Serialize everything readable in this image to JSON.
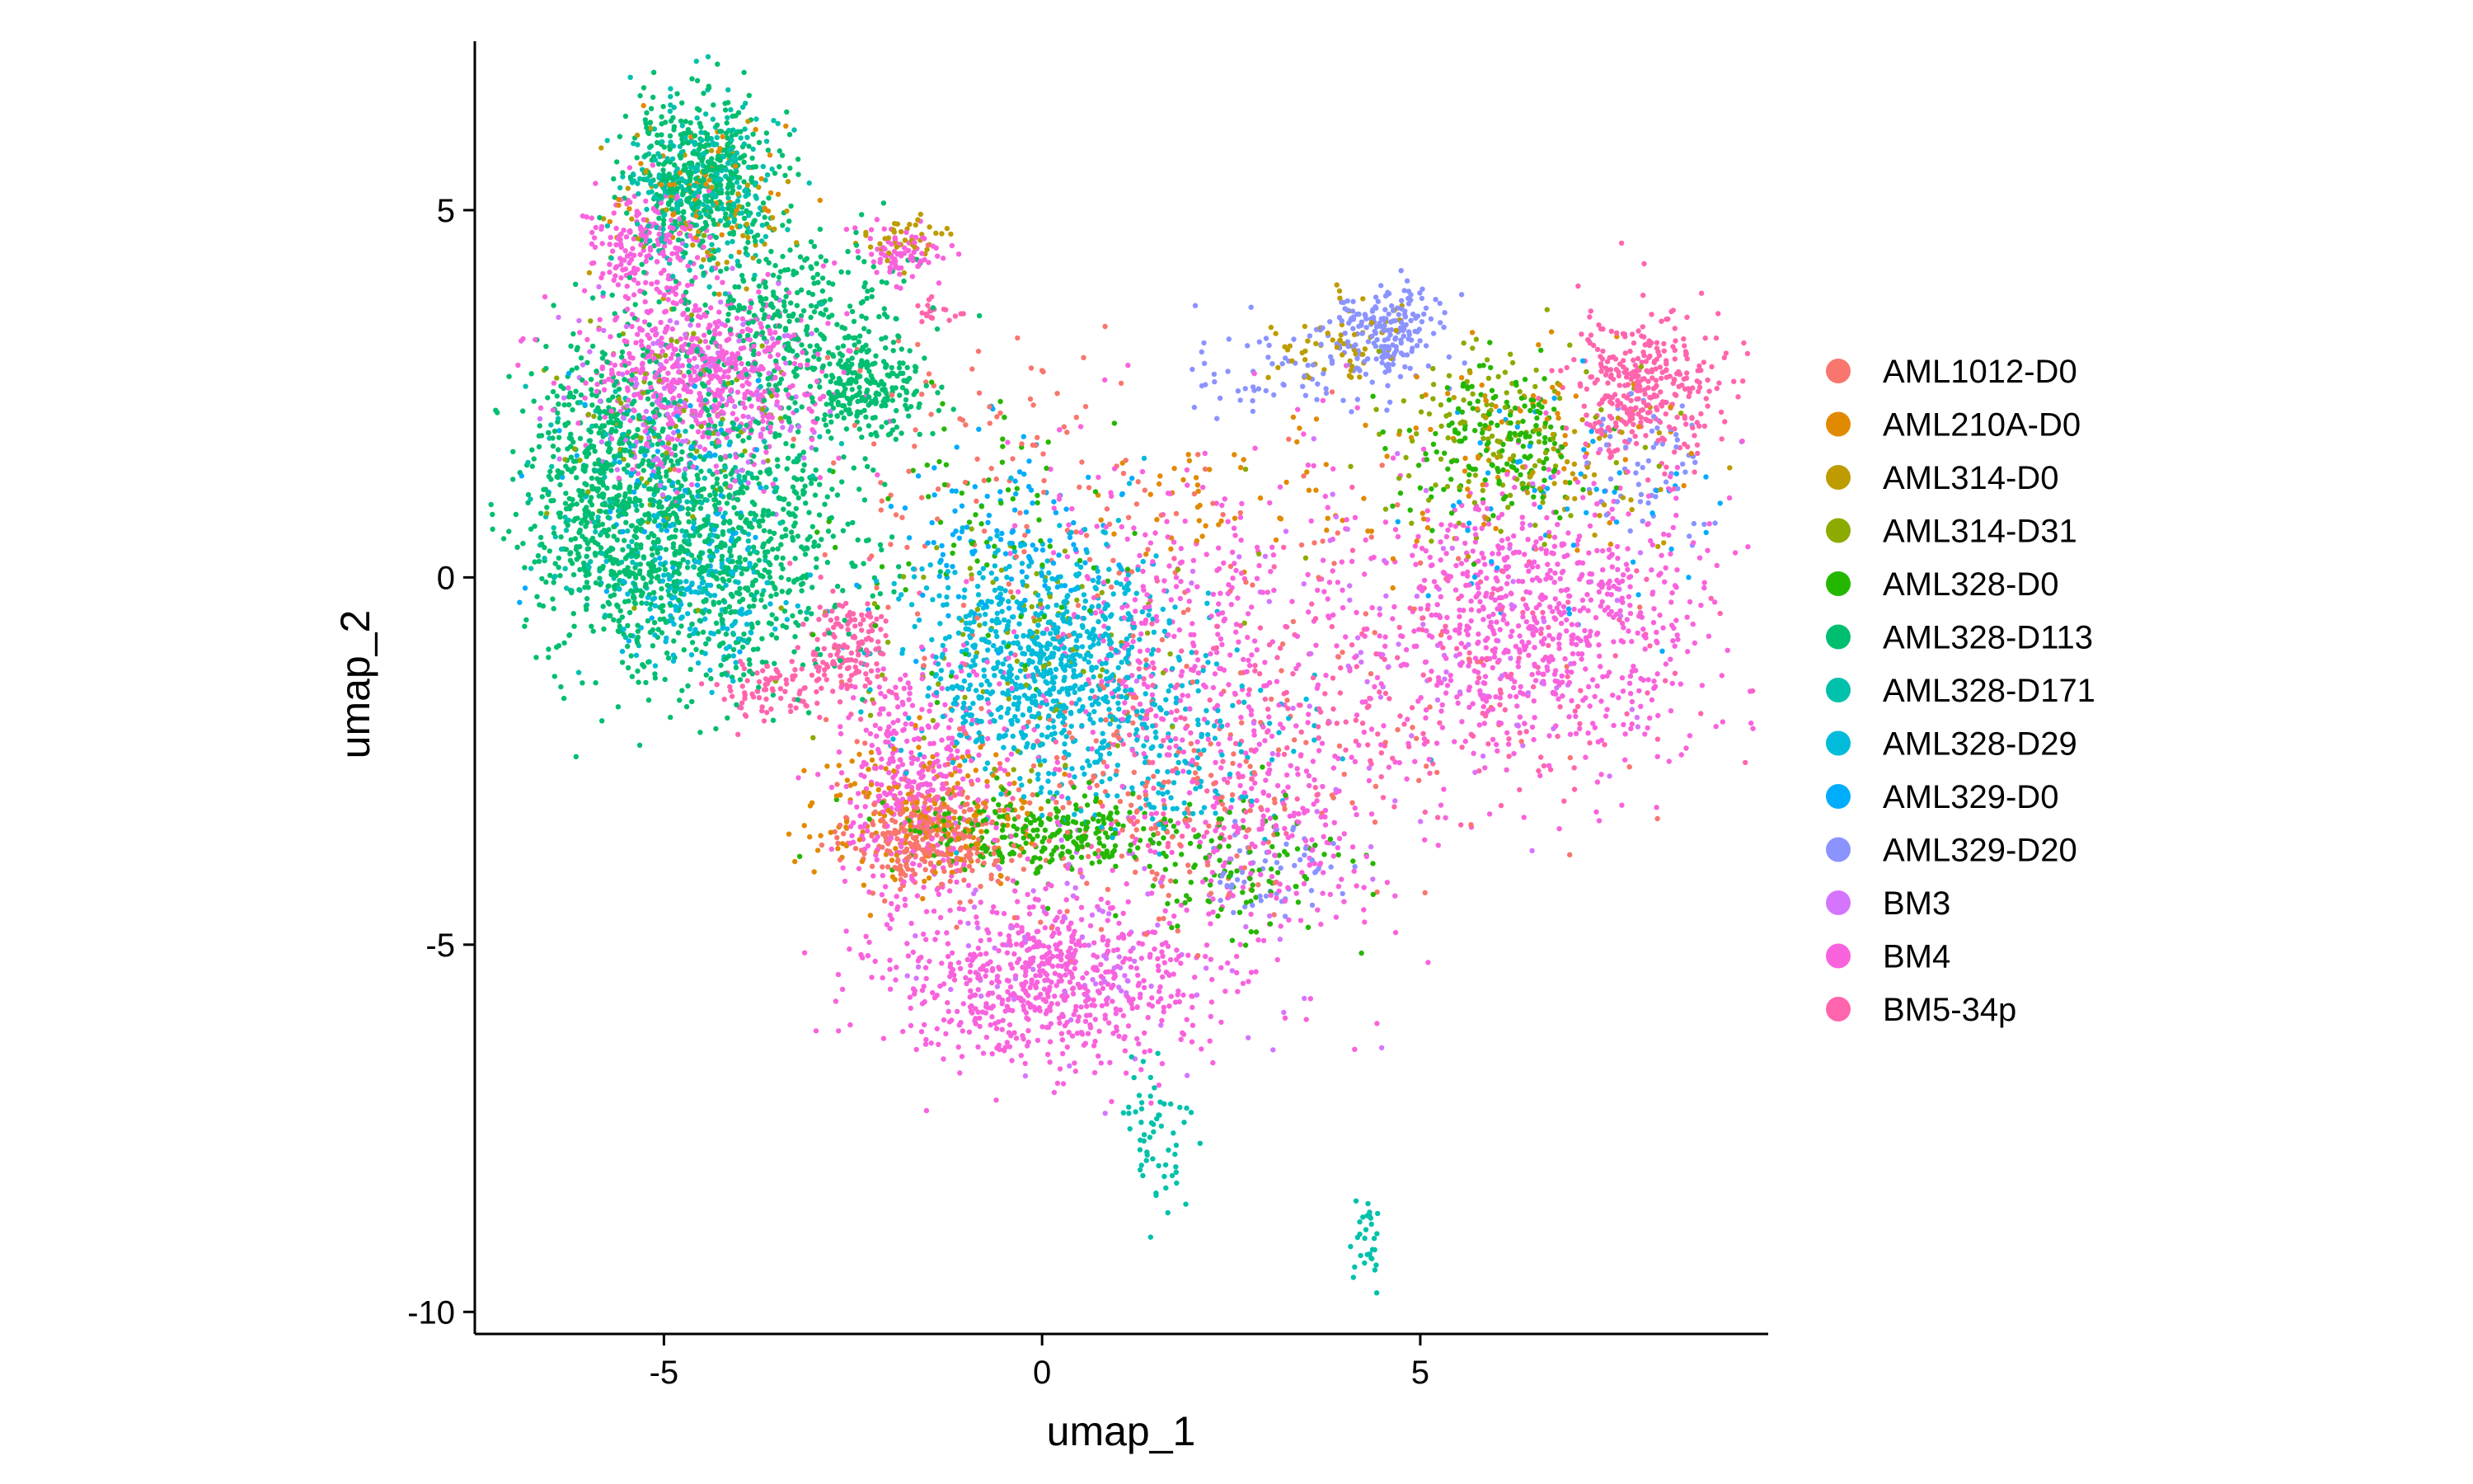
{
  "chart_data": {
    "type": "scatter",
    "title": "",
    "xlabel": "umap_1",
    "ylabel": "umap_2",
    "xlim": [
      -7.5,
      9.6
    ],
    "ylim": [
      -10.3,
      7.3
    ],
    "xticks": [
      -5,
      0,
      5
    ],
    "xtick_labels": [
      "-5",
      "0",
      "5"
    ],
    "yticks": [
      -10,
      -5,
      0,
      5
    ],
    "ytick_labels": [
      "-10",
      "-5",
      "0",
      "5"
    ],
    "grid": false,
    "legend_position": "right",
    "series": [
      {
        "name": "AML1012-D0",
        "color": "#F8766D",
        "clusters": [
          {
            "x": -1.5,
            "y": -3.5,
            "sx": 0.5,
            "sy": 0.35,
            "n": 300
          },
          {
            "x": 1.2,
            "y": -3.0,
            "sx": 1.5,
            "sy": 1.0,
            "n": 200
          },
          {
            "x": -0.5,
            "y": 1.5,
            "sx": 1.5,
            "sy": 1.0,
            "n": 120
          },
          {
            "x": 3.5,
            "y": -1.5,
            "sx": 2.0,
            "sy": 1.5,
            "n": 100
          }
        ]
      },
      {
        "name": "AML210A-D0",
        "color": "#E18A00",
        "clusters": [
          {
            "x": -1.5,
            "y": -3.2,
            "sx": 0.8,
            "sy": 0.5,
            "n": 200
          },
          {
            "x": -4.5,
            "y": 5.2,
            "sx": 0.6,
            "sy": 0.5,
            "n": 60
          },
          {
            "x": 2.5,
            "y": 1.0,
            "sx": 1.2,
            "sy": 0.5,
            "n": 60
          },
          {
            "x": 6.5,
            "y": 2.0,
            "sx": 1.0,
            "sy": 0.6,
            "n": 60
          }
        ]
      },
      {
        "name": "AML314-D0",
        "color": "#BE9C00",
        "clusters": [
          {
            "x": -1.8,
            "y": 4.6,
            "sx": 0.3,
            "sy": 0.2,
            "n": 40
          },
          {
            "x": -4.5,
            "y": 5.0,
            "sx": 0.6,
            "sy": 0.5,
            "n": 60
          },
          {
            "x": 4.0,
            "y": 3.2,
            "sx": 0.5,
            "sy": 0.3,
            "n": 60
          },
          {
            "x": 7.0,
            "y": 1.5,
            "sx": 0.8,
            "sy": 0.6,
            "n": 60
          }
        ]
      },
      {
        "name": "AML314-D31",
        "color": "#8CAB00",
        "clusters": [
          {
            "x": -5.0,
            "y": 2.0,
            "sx": 0.8,
            "sy": 0.8,
            "n": 100
          },
          {
            "x": 6.0,
            "y": 2.0,
            "sx": 0.8,
            "sy": 0.6,
            "n": 120
          },
          {
            "x": -0.3,
            "y": -1.0,
            "sx": 1.2,
            "sy": 0.9,
            "n": 100
          }
        ]
      },
      {
        "name": "AML328-D0",
        "color": "#24B700",
        "clusters": [
          {
            "x": 0.0,
            "y": -3.5,
            "sx": 1.0,
            "sy": 0.3,
            "n": 280
          },
          {
            "x": 6.0,
            "y": 1.8,
            "sx": 0.6,
            "sy": 0.5,
            "n": 180
          },
          {
            "x": 2.5,
            "y": -4.0,
            "sx": 0.8,
            "sy": 0.5,
            "n": 100
          },
          {
            "x": -0.5,
            "y": 0.5,
            "sx": 1.0,
            "sy": 1.0,
            "n": 80
          }
        ]
      },
      {
        "name": "AML328-D113",
        "color": "#00BE70",
        "clusters": [
          {
            "x": -4.5,
            "y": 0.5,
            "sx": 1.0,
            "sy": 1.0,
            "n": 1000
          },
          {
            "x": -5.8,
            "y": 1.5,
            "sx": 0.5,
            "sy": 0.9,
            "n": 450
          },
          {
            "x": -4.5,
            "y": 5.5,
            "sx": 0.5,
            "sy": 0.5,
            "n": 400
          },
          {
            "x": -3.3,
            "y": 3.5,
            "sx": 0.8,
            "sy": 0.6,
            "n": 350
          },
          {
            "x": -2.3,
            "y": 2.5,
            "sx": 0.4,
            "sy": 0.3,
            "n": 200
          }
        ]
      },
      {
        "name": "AML328-D171",
        "color": "#00C1AB",
        "clusters": [
          {
            "x": -4.5,
            "y": 5.3,
            "sx": 0.5,
            "sy": 0.6,
            "n": 300
          },
          {
            "x": -5.0,
            "y": 1.0,
            "sx": 0.9,
            "sy": 0.9,
            "n": 200
          },
          {
            "x": 1.5,
            "y": -7.5,
            "sx": 0.2,
            "sy": 0.5,
            "n": 60
          },
          {
            "x": 4.3,
            "y": -9.0,
            "sx": 0.1,
            "sy": 0.3,
            "n": 30
          }
        ]
      },
      {
        "name": "AML328-D29",
        "color": "#00BBDA",
        "clusters": [
          {
            "x": 0.0,
            "y": -1.2,
            "sx": 0.9,
            "sy": 0.8,
            "n": 800
          },
          {
            "x": -4.5,
            "y": -0.3,
            "sx": 0.6,
            "sy": 0.5,
            "n": 150
          },
          {
            "x": 1.5,
            "y": -2.5,
            "sx": 1.0,
            "sy": 0.6,
            "n": 150
          }
        ]
      },
      {
        "name": "AML329-D0",
        "color": "#00ACFC",
        "clusters": [
          {
            "x": -0.5,
            "y": 0.5,
            "sx": 0.8,
            "sy": 0.6,
            "n": 120
          },
          {
            "x": -5.0,
            "y": 1.0,
            "sx": 0.8,
            "sy": 0.8,
            "n": 100
          },
          {
            "x": 7.0,
            "y": 1.0,
            "sx": 1.0,
            "sy": 0.8,
            "n": 60
          }
        ]
      },
      {
        "name": "AML329-D20",
        "color": "#8B93FF",
        "clusters": [
          {
            "x": 4.5,
            "y": 3.4,
            "sx": 0.4,
            "sy": 0.3,
            "n": 200
          },
          {
            "x": 3.0,
            "y": 2.8,
            "sx": 0.8,
            "sy": 0.3,
            "n": 60
          },
          {
            "x": 8.0,
            "y": 1.5,
            "sx": 0.4,
            "sy": 0.5,
            "n": 60
          },
          {
            "x": 3.0,
            "y": -4.0,
            "sx": 0.5,
            "sy": 0.3,
            "n": 60
          }
        ]
      },
      {
        "name": "BM3",
        "color": "#D575FE",
        "clusters": [
          {
            "x": -4.5,
            "y": 2.5,
            "sx": 0.8,
            "sy": 0.7,
            "n": 150
          },
          {
            "x": 5.0,
            "y": -1.0,
            "sx": 1.5,
            "sy": 1.2,
            "n": 100
          },
          {
            "x": 0.5,
            "y": -5.0,
            "sx": 1.2,
            "sy": 0.8,
            "n": 100
          }
        ]
      },
      {
        "name": "BM4",
        "color": "#F962DD",
        "clusters": [
          {
            "x": -4.5,
            "y": 2.7,
            "sx": 0.8,
            "sy": 0.6,
            "n": 600
          },
          {
            "x": -5.3,
            "y": 4.5,
            "sx": 0.4,
            "sy": 0.4,
            "n": 200
          },
          {
            "x": 0.0,
            "y": -5.5,
            "sx": 1.1,
            "sy": 0.6,
            "n": 700
          },
          {
            "x": -1.7,
            "y": -2.8,
            "sx": 0.5,
            "sy": 0.9,
            "n": 400
          },
          {
            "x": 6.5,
            "y": -0.6,
            "sx": 1.2,
            "sy": 1.0,
            "n": 800
          },
          {
            "x": 2.0,
            "y": -1.0,
            "sx": 1.2,
            "sy": 1.4,
            "n": 400
          },
          {
            "x": 3.0,
            "y": -3.5,
            "sx": 0.8,
            "sy": 0.8,
            "n": 200
          },
          {
            "x": -1.9,
            "y": 4.4,
            "sx": 0.3,
            "sy": 0.2,
            "n": 80
          }
        ]
      },
      {
        "name": "BM5-34p",
        "color": "#FF65AC",
        "clusters": [
          {
            "x": 8.0,
            "y": 2.6,
            "sx": 0.5,
            "sy": 0.5,
            "n": 350
          },
          {
            "x": -2.6,
            "y": -1.0,
            "sx": 0.3,
            "sy": 0.4,
            "n": 150
          },
          {
            "x": -3.6,
            "y": -1.5,
            "sx": 0.3,
            "sy": 0.2,
            "n": 80
          },
          {
            "x": -1.4,
            "y": 3.6,
            "sx": 0.15,
            "sy": 0.1,
            "n": 20
          },
          {
            "x": 2.5,
            "y": -2.0,
            "sx": 1.5,
            "sy": 1.0,
            "n": 150
          },
          {
            "x": 6.0,
            "y": -1.5,
            "sx": 1.5,
            "sy": 0.8,
            "n": 120
          }
        ]
      }
    ]
  }
}
